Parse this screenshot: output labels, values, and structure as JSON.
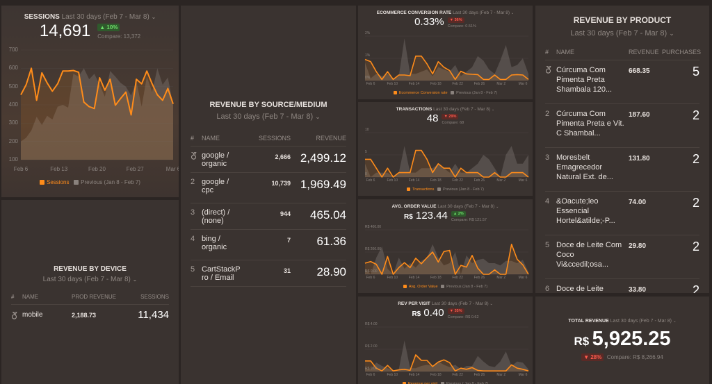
{
  "sessions": {
    "title": "Sessions",
    "period": "Last 30 days (Feb 7 - Mar 8)",
    "value": "14,691",
    "change": "▲ 10%",
    "compare": "Compare: 13,372",
    "legend_current": "Sessions",
    "legend_previous": "Previous (Jan 8 - Feb 7)"
  },
  "conversion": {
    "title": "Ecommerce Conversion Rate",
    "period": "Last 30 days (Feb 7 - Mar 8)",
    "value": "0.33%",
    "change": "▼ 36%",
    "compare": "Compare: 0.51%",
    "legend_current": "Ecommerce Conversion rate",
    "legend_previous": "Previous (Jan 8 - Feb 7)"
  },
  "transactions": {
    "title": "Transactions",
    "period": "Last 30 days (Feb 7 - Mar 8)",
    "value": "48",
    "change": "▼ 29%",
    "compare": "Compare: 68",
    "legend_current": "Transactions",
    "legend_previous": "Previous (Jan 8 - Feb 7)"
  },
  "aov": {
    "title": "Avg. Order Value",
    "period": "Last 30 days (Feb 7 - Mar 8)",
    "currency": "R$",
    "value": "123.44",
    "change": "▲ 2%",
    "compare": "Compare: R$ 121.57",
    "legend_current": "Avg. Order Value",
    "legend_previous": "Previous (Jan 8 - Feb 7)"
  },
  "rpv": {
    "title": "Rev per visit",
    "period": "Last 30 days (Feb 7 - Mar 8)",
    "currency": "R$",
    "value": "0.40",
    "change": "▼ 35%",
    "compare": "Compare: R$ 0.62",
    "legend_current": "Revenue per visit",
    "legend_previous": "Previous ( Jan 8 - Feb 7)"
  },
  "source": {
    "title": "Revenue by Source/Medium",
    "period": "Last 30 days (Feb 7 - Mar 8)",
    "headers": [
      "#",
      "NAME",
      "SESSIONS",
      "REVENUE"
    ],
    "rows": [
      {
        "rank": "",
        "name": "google / organic",
        "sessions": "2,666",
        "revenue": "2,499.12"
      },
      {
        "rank": "2",
        "name": "google / cpc",
        "sessions": "10,739",
        "revenue": "1,969.49"
      },
      {
        "rank": "3",
        "name": "(direct) / (none)",
        "sessions": "944",
        "revenue": "465.04"
      },
      {
        "rank": "4",
        "name": "bing / organic",
        "sessions": "7",
        "revenue": "61.36"
      },
      {
        "rank": "5",
        "name": "CartStackPro / Email",
        "sessions": "31",
        "revenue": "28.90"
      }
    ]
  },
  "device": {
    "title": "Revenue by Device",
    "period": "Last 30 days (Feb 7 - Mar 8)",
    "headers": [
      "#",
      "NAME",
      "PROD REVENUE",
      "SESSIONS"
    ],
    "rows": [
      {
        "rank": "",
        "name": "mobile",
        "revenue": "2,188.73",
        "sessions": "11,434"
      }
    ]
  },
  "product": {
    "title": "Revenue by Product",
    "period": "Last 30 days (Feb 7 - Mar 8)",
    "headers": [
      "#",
      "NAME",
      "REVENUE",
      "PURCHASES"
    ],
    "rows": [
      {
        "rank": "",
        "name": "Cúrcuma Com Pimenta Preta Shambala 120...",
        "revenue": "668.35",
        "purchases": "5"
      },
      {
        "rank": "2",
        "name": "Cúrcuma Com Pimenta Preta e Vit. C Shambal...",
        "revenue": "187.60",
        "purchases": "2"
      },
      {
        "rank": "3",
        "name": "Moresbelt Emagrecedor Natural Ext. de...",
        "revenue": "131.80",
        "purchases": "2"
      },
      {
        "rank": "4",
        "name": "&Oacute;leo Essencial Hortel&atilde;-P...",
        "revenue": "74.00",
        "purchases": "2"
      },
      {
        "rank": "5",
        "name": "Doce de Leite Com Coco Vi&ccedil;osa...",
        "revenue": "29.80",
        "purchases": "2"
      },
      {
        "rank": "6",
        "name": "Doce de Leite",
        "revenue": "33.80",
        "purchases": "2"
      }
    ]
  },
  "total": {
    "title": "Total Revenue",
    "period": "Last 30 days (Feb 7 - Mar 8)",
    "currency": "R$",
    "value": "5,925.25",
    "change": "▼ 28%",
    "compare": "Compare: R$ 8,266.94"
  },
  "colors": {
    "current": "#ff8c1a",
    "previous": "#8a827d"
  },
  "chart_data": [
    {
      "id": "sessions",
      "type": "area",
      "ylim": [
        100,
        700
      ],
      "yticks": [
        "700",
        "600",
        "500",
        "400",
        "300",
        "200",
        "100"
      ],
      "xticks": [
        "Feb 6",
        "Feb 13",
        "Feb 20",
        "Feb 27",
        "Mar 6"
      ],
      "series": [
        {
          "name": "Sessions",
          "values": [
            455,
            510,
            600,
            425,
            575,
            520,
            475,
            515,
            585,
            585,
            588,
            578,
            415,
            390,
            380,
            548,
            480,
            540,
            398,
            435,
            470,
            345,
            540,
            515,
            585,
            515,
            455,
            425,
            490,
            405
          ]
        },
        {
          "name": "Previous (Jan 8 - Feb 7)",
          "values": [
            200,
            220,
            260,
            335,
            290,
            340,
            320,
            390,
            400,
            385,
            570,
            555,
            600,
            540,
            570,
            510,
            445,
            585,
            555,
            520,
            500,
            450,
            530,
            390,
            555,
            470,
            600,
            510,
            550,
            400
          ]
        }
      ]
    },
    {
      "id": "conversion",
      "type": "area",
      "ylim": [
        0,
        2
      ],
      "yticks": [
        "2%",
        "1%",
        "0%"
      ],
      "xticks": [
        "Feb 6",
        "Feb 10",
        "Feb 14",
        "Feb 18",
        "Feb 22",
        "Feb 26",
        "Mar 2",
        "Mar 6"
      ],
      "series": [
        {
          "name": "Ecommerce Conversion rate",
          "values": [
            0.95,
            0.85,
            0.4,
            0.05,
            0.4,
            0.05,
            0.25,
            0.25,
            0.22,
            1.1,
            1.1,
            0.75,
            0.3,
            0.85,
            0.6,
            0.45,
            0.05,
            0.42,
            0.3,
            0.28,
            0.27,
            0.05,
            0.05,
            0.25,
            0.05,
            0.05,
            0.25,
            0.27,
            0.25,
            0.05
          ]
        },
        {
          "name": "Previous (Jan 8 - Feb 7)",
          "values": [
            0.8,
            0.1,
            0.3,
            0.2,
            0.3,
            0.1,
            0.2,
            1.9,
            0.3,
            0.3,
            0.4,
            0.5,
            0.2,
            0.6,
            0.5,
            0.4,
            0.7,
            0.2,
            0.4,
            0.6,
            1.1,
            0.9,
            0.5,
            0.3,
            0.9,
            1.6,
            0.6,
            0.7,
            1.0,
            0.3
          ]
        }
      ]
    },
    {
      "id": "transactions",
      "type": "area",
      "ylim": [
        0,
        10
      ],
      "yticks": [
        "10",
        "5",
        "0"
      ],
      "xticks": [
        "Feb 6",
        "Feb 10",
        "Feb 14",
        "Feb 18",
        "Feb 22",
        "Feb 26",
        "Mar 2",
        "Mar 6"
      ],
      "series": [
        {
          "name": "Transactions",
          "values": [
            4,
            4,
            2,
            0,
            2,
            0,
            1,
            1,
            1,
            6,
            6,
            4,
            1,
            3,
            2,
            2,
            0,
            2,
            1,
            1,
            1,
            0,
            0,
            1,
            0,
            0,
            1,
            1,
            1,
            0
          ]
        },
        {
          "name": "Previous (Jan 8 - Feb 7)",
          "values": [
            3,
            0,
            1,
            1,
            1,
            0,
            1,
            7,
            1,
            1,
            2,
            2,
            2,
            3,
            2,
            1,
            3,
            1,
            1,
            2,
            3,
            5,
            4,
            2,
            0,
            5,
            7,
            3,
            3,
            5
          ]
        }
      ]
    },
    {
      "id": "aov",
      "type": "area",
      "ylim": [
        0,
        400
      ],
      "yticks": [
        "R$ 400.00",
        "R$ 200.00",
        "R$ 0.00"
      ],
      "xticks": [
        "Feb 6",
        "Feb 10",
        "Feb 14",
        "Feb 18",
        "Feb 22",
        "Feb 26",
        "Mar 2",
        "Mar 6"
      ],
      "series": [
        {
          "name": "Avg. Order Value",
          "values": [
            100,
            115,
            90,
            0,
            160,
            0,
            60,
            105,
            60,
            145,
            95,
            150,
            200,
            110,
            205,
            215,
            0,
            80,
            65,
            170,
            55,
            0,
            0,
            40,
            0,
            0,
            270,
            135,
            85,
            0
          ]
        },
        {
          "name": "Previous (Jan 8 - Feb 7)",
          "values": [
            50,
            0,
            150,
            250,
            50,
            0,
            150,
            50,
            100,
            60,
            120,
            150,
            270,
            150,
            80,
            100,
            200,
            0,
            170,
            100,
            130,
            140,
            100,
            100,
            80,
            120,
            120,
            100,
            130,
            20
          ]
        }
      ]
    },
    {
      "id": "rpv",
      "type": "area",
      "ylim": [
        0,
        4
      ],
      "yticks": [
        "R$ 4.00",
        "R$ 2.00",
        "R$ 0.00"
      ],
      "xticks": [
        "Feb 6",
        "Feb 10",
        "Feb 14",
        "Feb 18",
        "Feb 22",
        "Feb 26",
        "Mar 2",
        "Mar 6"
      ],
      "series": [
        {
          "name": "Revenue per visit",
          "values": [
            0.95,
            0.95,
            0.3,
            0.05,
            0.55,
            0.05,
            0.15,
            0.2,
            0.1,
            1.5,
            1.0,
            1.0,
            0.45,
            0.85,
            1.05,
            0.8,
            0.05,
            0.3,
            0.2,
            0.35,
            0.1,
            0.05,
            0.05,
            0.05,
            0.05,
            0.05,
            0.6,
            0.3,
            0.2,
            0.05
          ]
        },
        {
          "name": "Previous ( Jan 8 - Feb 7)",
          "values": [
            0.3,
            0.2,
            0.8,
            0.5,
            0.3,
            0.1,
            0.2,
            2.8,
            0.3,
            0.3,
            0.5,
            0.6,
            0.5,
            0.9,
            0.6,
            0.4,
            0.6,
            0.2,
            0.5,
            0.5,
            1.4,
            0.9,
            0.5,
            0.4,
            0.9,
            1.8,
            0.5,
            0.9,
            0.8,
            0.2
          ]
        }
      ]
    }
  ]
}
